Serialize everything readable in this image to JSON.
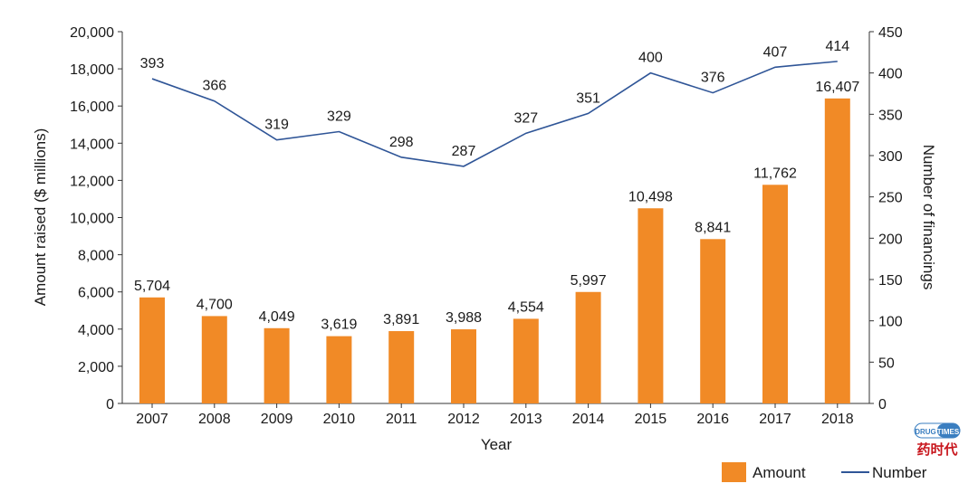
{
  "chart_data": {
    "type": "bar+line",
    "categories": [
      "2007",
      "2008",
      "2009",
      "2010",
      "2011",
      "2012",
      "2013",
      "2014",
      "2015",
      "2016",
      "2017",
      "2018"
    ],
    "series": [
      {
        "name": "Amount",
        "type": "bar",
        "axis": "left",
        "color": "#F18A26",
        "values": [
          5704,
          4700,
          4049,
          3619,
          3891,
          3988,
          4554,
          5997,
          10498,
          8841,
          11762,
          16407
        ],
        "labels": [
          "5,704",
          "4,700",
          "4,049",
          "3,619",
          "3,891",
          "3,988",
          "4,554",
          "5,997",
          "10,498",
          "8,841",
          "11,762",
          "16,407"
        ]
      },
      {
        "name": "Number",
        "type": "line",
        "axis": "right",
        "color": "#2F5597",
        "values": [
          393,
          366,
          319,
          329,
          298,
          287,
          327,
          351,
          400,
          376,
          407,
          414
        ],
        "labels": [
          "393",
          "366",
          "319",
          "329",
          "298",
          "287",
          "327",
          "351",
          "400",
          "376",
          "407",
          "414"
        ]
      }
    ],
    "xlabel": "Year",
    "ylabel": "Amount raised ($ millions)",
    "y2label": "Number of financings",
    "ylim": [
      0,
      20000
    ],
    "y2lim": [
      0,
      450
    ],
    "yticks": [
      "0",
      "2,000",
      "4,000",
      "6,000",
      "8,000",
      "10,000",
      "12,000",
      "14,000",
      "16,000",
      "18,000",
      "20,000"
    ],
    "y2ticks": [
      "0",
      "50",
      "100",
      "150",
      "200",
      "250",
      "300",
      "350",
      "400",
      "450"
    ],
    "grid": false,
    "legend_position": "bottom-right"
  },
  "watermark": {
    "text_en": "DRUG TIMES",
    "text_cn": "药时代"
  }
}
